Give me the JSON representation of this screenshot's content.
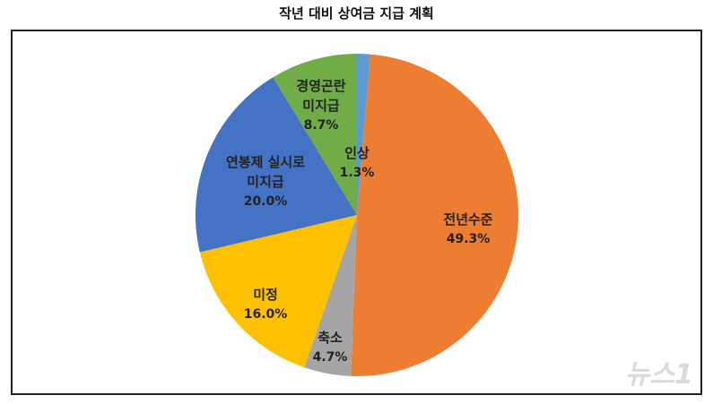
{
  "chart_data": {
    "type": "pie",
    "title": "작년 대비 상여금 지급 계획",
    "categories": [
      "인상",
      "전년수준",
      "축소",
      "미정",
      "연봉제 실시로\n미지급",
      "경영곤란\n미지급"
    ],
    "values": [
      1.3,
      49.3,
      4.7,
      16.0,
      20.0,
      8.7
    ],
    "value_labels": [
      "1.3%",
      "49.3%",
      "4.7%",
      "16.0%",
      "20.0%",
      "8.7%"
    ],
    "colors": [
      "#5b9bd5",
      "#ed7d31",
      "#a5a5a5",
      "#ffc000",
      "#4472c4",
      "#70ad47"
    ]
  },
  "watermark": "뉴스1"
}
